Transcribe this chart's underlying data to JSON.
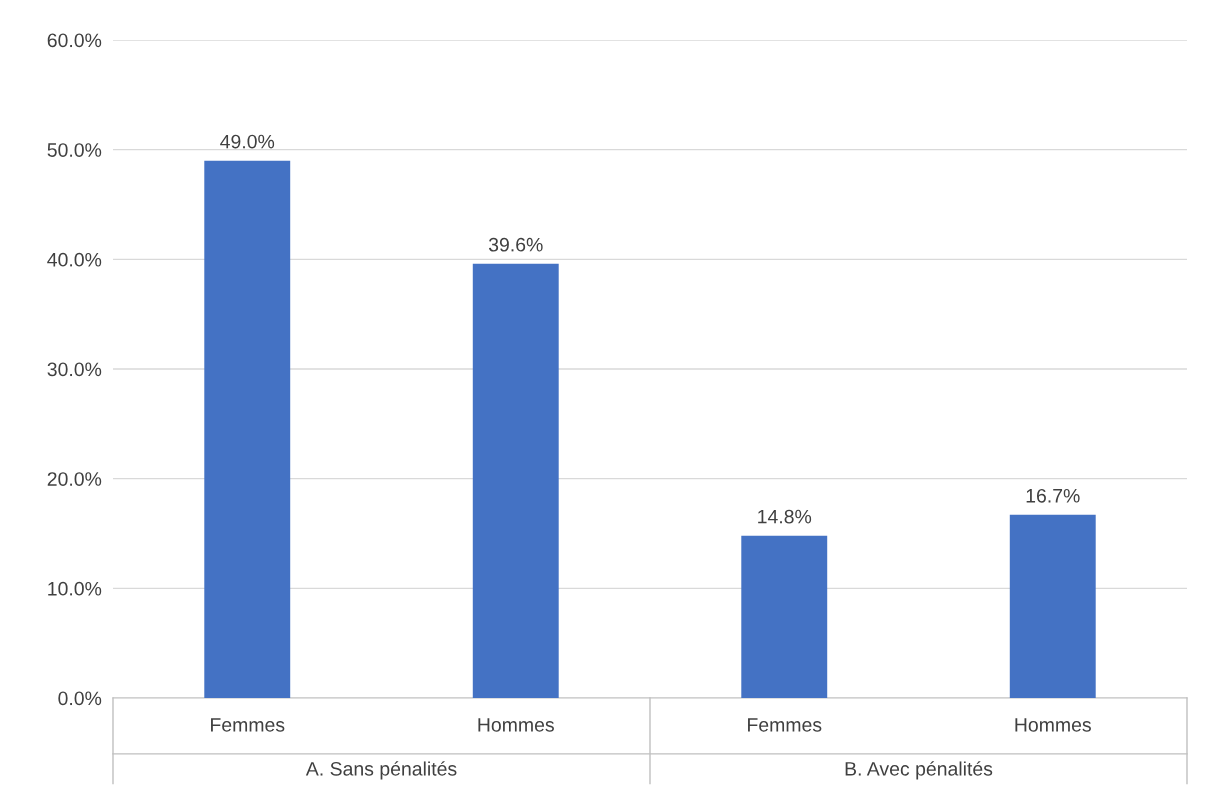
{
  "chart_data": {
    "type": "bar",
    "categories": [
      "Femmes",
      "Hommes",
      "Femmes",
      "Hommes"
    ],
    "values": [
      49.0,
      39.6,
      14.8,
      16.7
    ],
    "value_labels": [
      "49.0%",
      "39.6%",
      "14.8%",
      "16.7%"
    ],
    "color": "#4472c4",
    "ylim": [
      0,
      60
    ],
    "yticks": [
      {
        "value": 0,
        "label": "0.0%"
      },
      {
        "value": 10,
        "label": "10.0%"
      },
      {
        "value": 20,
        "label": "20.0%"
      },
      {
        "value": 30,
        "label": "30.0%"
      },
      {
        "value": 40,
        "label": "40.0%"
      },
      {
        "value": 50,
        "label": "50.0%"
      },
      {
        "value": 60,
        "label": "60.0%"
      }
    ],
    "grid": "y",
    "annotations": [
      "A. Sans pénalités",
      "B. Avec pénalités"
    ]
  }
}
